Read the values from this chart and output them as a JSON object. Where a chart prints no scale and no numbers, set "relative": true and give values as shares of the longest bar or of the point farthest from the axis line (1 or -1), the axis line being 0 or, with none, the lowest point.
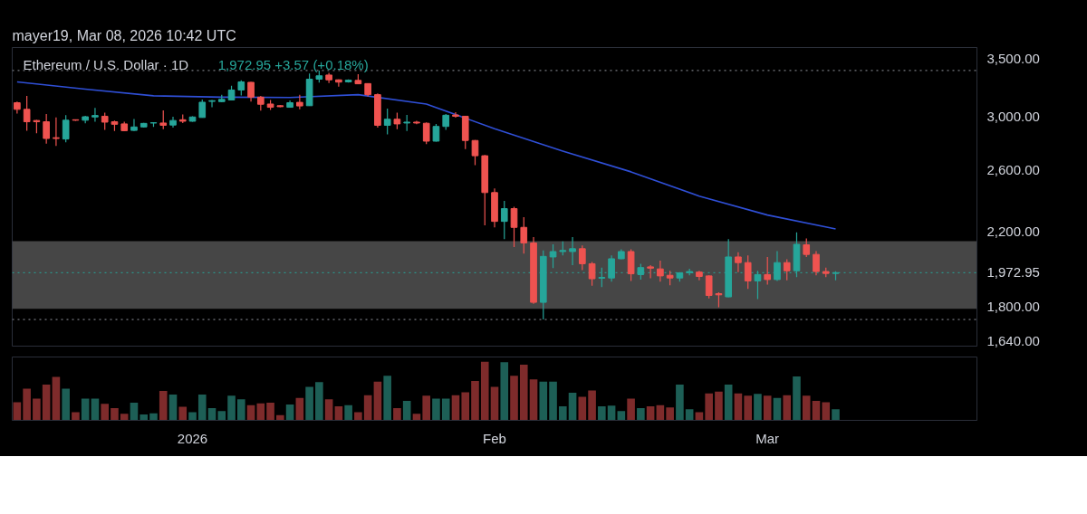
{
  "chart_data": [
    {
      "type": "candlestick",
      "title": "Ethereum / U.S. Dollar · 1D",
      "annotations": [
        "mayer19, Mar 08, 2026 10:42 UTC",
        "1,972.95  +3.57 (+0.18%)"
      ],
      "log": true,
      "tick_labels": "y",
      "xlim": [
        "2025-12-13T12:00",
        "2026-03-22T12:00"
      ],
      "ylim": [
        1620,
        3610
      ],
      "yticks": [
        {
          "value": 1640,
          "label": "1,640.00"
        },
        {
          "value": 1800,
          "label": "1,800.00"
        },
        {
          "value": 2200,
          "label": "2,200.00"
        },
        {
          "value": 2600,
          "label": "2,600.00"
        },
        {
          "value": 3000,
          "label": "3,000.00"
        },
        {
          "value": 3500,
          "label": "3,500.00"
        }
      ],
      "x": [
        "2025-12-14",
        "2025-12-15",
        "2025-12-16",
        "2025-12-17",
        "2025-12-18",
        "2025-12-19",
        "2025-12-20",
        "2025-12-21",
        "2025-12-22",
        "2025-12-23",
        "2025-12-24",
        "2025-12-25",
        "2025-12-26",
        "2025-12-27",
        "2025-12-28",
        "2025-12-29",
        "2025-12-30",
        "2025-12-31",
        "2026-01-01",
        "2026-01-02",
        "2026-01-03",
        "2026-01-04",
        "2026-01-05",
        "2026-01-06",
        "2026-01-07",
        "2026-01-08",
        "2026-01-09",
        "2026-01-10",
        "2026-01-11",
        "2026-01-12",
        "2026-01-13",
        "2026-01-14",
        "2026-01-15",
        "2026-01-16",
        "2026-01-17",
        "2026-01-18",
        "2026-01-19",
        "2026-01-20",
        "2026-01-21",
        "2026-01-22",
        "2026-01-23",
        "2026-01-24",
        "2026-01-25",
        "2026-01-26",
        "2026-01-27",
        "2026-01-28",
        "2026-01-29",
        "2026-01-30",
        "2026-01-31",
        "2026-02-01",
        "2026-02-02",
        "2026-02-03",
        "2026-02-04",
        "2026-02-05",
        "2026-02-06",
        "2026-02-07",
        "2026-02-08",
        "2026-02-09",
        "2026-02-10",
        "2026-02-11",
        "2026-02-12",
        "2026-02-13",
        "2026-02-14",
        "2026-02-15",
        "2026-02-16",
        "2026-02-17",
        "2026-02-18",
        "2026-02-19",
        "2026-02-20",
        "2026-02-21",
        "2026-02-22",
        "2026-02-23",
        "2026-02-24",
        "2026-02-25",
        "2026-02-26",
        "2026-02-27",
        "2026-02-28",
        "2026-03-01",
        "2026-03-02",
        "2026-03-03",
        "2026-03-04",
        "2026-03-05",
        "2026-03-06",
        "2026-03-07",
        "2026-03-08"
      ],
      "ohlc": [
        [
          3113,
          3122,
          3023,
          3058
        ],
        [
          3058,
          3170,
          2888,
          2958
        ],
        [
          2968,
          2972,
          2868,
          2958
        ],
        [
          2958,
          3020,
          2789,
          2828
        ],
        [
          2834,
          2992,
          2772,
          2828
        ],
        [
          2824,
          3010,
          2800,
          2970
        ],
        [
          2974,
          2977,
          2966,
          2970
        ],
        [
          2970,
          3006,
          2946,
          2998
        ],
        [
          2996,
          3070,
          2958,
          3008
        ],
        [
          3002,
          3031,
          2894,
          2955
        ],
        [
          2958,
          2968,
          2886,
          2938
        ],
        [
          2941,
          2958,
          2884,
          2888
        ],
        [
          2890,
          2980,
          2886,
          2917
        ],
        [
          2917,
          2950,
          2912,
          2945
        ],
        [
          2948,
          2954,
          2917,
          2950
        ],
        [
          2948,
          3049,
          2900,
          2930
        ],
        [
          2932,
          2998,
          2912,
          2968
        ],
        [
          2974,
          3016,
          2948,
          2962
        ],
        [
          2962,
          3002,
          2958,
          2996
        ],
        [
          2992,
          3139,
          2990,
          3117
        ],
        [
          3124,
          3136,
          3075,
          3130
        ],
        [
          3122,
          3180,
          3116,
          3141
        ],
        [
          3136,
          3258,
          3132,
          3221
        ],
        [
          3221,
          3306,
          3175,
          3292
        ],
        [
          3288,
          3292,
          3122,
          3160
        ],
        [
          3160,
          3170,
          3047,
          3100
        ],
        [
          3102,
          3136,
          3054,
          3075
        ],
        [
          3088,
          3092,
          3075,
          3080
        ],
        [
          3075,
          3132,
          3071,
          3113
        ],
        [
          3116,
          3180,
          3058,
          3086
        ],
        [
          3088,
          3367,
          3086,
          3316
        ],
        [
          3316,
          3394,
          3286,
          3346
        ],
        [
          3353,
          3372,
          3282,
          3310
        ],
        [
          3310,
          3313,
          3251,
          3290
        ],
        [
          3292,
          3313,
          3286,
          3307
        ],
        [
          3305,
          3360,
          3273,
          3275
        ],
        [
          3277,
          3277,
          3166,
          3181
        ],
        [
          3181,
          3192,
          2912,
          2930
        ],
        [
          2930,
          3064,
          2859,
          2978
        ],
        [
          2978,
          3031,
          2900,
          2941
        ],
        [
          2948,
          3012,
          2886,
          2955
        ],
        [
          2955,
          2966,
          2938,
          2948
        ],
        [
          2946,
          2952,
          2786,
          2808
        ],
        [
          2808,
          2941,
          2805,
          2921
        ],
        [
          2921,
          3020,
          2894,
          3010
        ],
        [
          3012,
          3034,
          2990,
          3002
        ],
        [
          3002,
          3005,
          2748,
          2813
        ],
        [
          2813,
          2817,
          2633,
          2700
        ],
        [
          2700,
          2705,
          2240,
          2446
        ],
        [
          2446,
          2473,
          2228,
          2264
        ],
        [
          2264,
          2392,
          2159,
          2343
        ],
        [
          2343,
          2354,
          2114,
          2228
        ],
        [
          2228,
          2290,
          2076,
          2137
        ],
        [
          2137,
          2170,
          1815,
          1822
        ],
        [
          1822,
          2094,
          1740,
          2061
        ],
        [
          2058,
          2129,
          1997,
          2088
        ],
        [
          2088,
          2146,
          2066,
          2094
        ],
        [
          2088,
          2170,
          2013,
          2104
        ],
        [
          2104,
          2122,
          1987,
          2021
        ],
        [
          2021,
          2031,
          1905,
          1941
        ],
        [
          1944,
          2000,
          1898,
          1948
        ],
        [
          1945,
          2067,
          1926,
          2048
        ],
        [
          2048,
          2101,
          2045,
          2088
        ],
        [
          2088,
          2101,
          1930,
          1967
        ],
        [
          1963,
          2021,
          1937,
          2000
        ],
        [
          2004,
          2013,
          1944,
          1997
        ],
        [
          1993,
          2038,
          1926,
          1956
        ],
        [
          1959,
          1983,
          1907,
          1945
        ],
        [
          1945,
          1976,
          1926,
          1972
        ],
        [
          1973,
          1994,
          1959,
          1979
        ],
        [
          1976,
          1983,
          1933,
          1953
        ],
        [
          1956,
          1959,
          1841,
          1856
        ],
        [
          1865,
          1872,
          1798,
          1859
        ],
        [
          1849,
          2159,
          1847,
          2058
        ],
        [
          2058,
          2084,
          1976,
          2027
        ],
        [
          2027,
          2067,
          1889,
          1930
        ],
        [
          1930,
          1983,
          1838,
          1963
        ],
        [
          1963,
          2058,
          1911,
          1937
        ],
        [
          1937,
          2091,
          1930,
          2027
        ],
        [
          2027,
          2045,
          1933,
          1983
        ],
        [
          1983,
          2198,
          1950,
          2129
        ],
        [
          2126,
          2163,
          2058,
          2072
        ],
        [
          2072,
          2091,
          1959,
          1979
        ],
        [
          1979,
          2000,
          1950,
          1969
        ],
        [
          1969,
          1980,
          1933,
          1972.95
        ]
      ],
      "colors": [
        "#ef5350",
        "#ef5350",
        "#ef5350",
        "#ef5350",
        "#ef5350",
        "#26a69a",
        "#ef5350",
        "#26a69a",
        "#26a69a",
        "#ef5350",
        "#ef5350",
        "#ef5350",
        "#26a69a",
        "#26a69a",
        "#26a69a",
        "#ef5350",
        "#26a69a",
        "#ef5350",
        "#26a69a",
        "#26a69a",
        "#26a69a",
        "#26a69a",
        "#26a69a",
        "#26a69a",
        "#ef5350",
        "#ef5350",
        "#ef5350",
        "#ef5350",
        "#26a69a",
        "#ef5350",
        "#26a69a",
        "#26a69a",
        "#ef5350",
        "#ef5350",
        "#26a69a",
        "#ef5350",
        "#ef5350",
        "#ef5350",
        "#26a69a",
        "#ef5350",
        "#26a69a",
        "#ef5350",
        "#ef5350",
        "#26a69a",
        "#26a69a",
        "#ef5350",
        "#ef5350",
        "#ef5350",
        "#ef5350",
        "#ef5350",
        "#26a69a",
        "#ef5350",
        "#ef5350",
        "#ef5350",
        "#26a69a",
        "#26a69a",
        "#26a69a",
        "#26a69a",
        "#ef5350",
        "#ef5350",
        "#26a69a",
        "#26a69a",
        "#26a69a",
        "#ef5350",
        "#26a69a",
        "#ef5350",
        "#ef5350",
        "#ef5350",
        "#26a69a",
        "#26a69a",
        "#ef5350",
        "#ef5350",
        "#ef5350",
        "#26a69a",
        "#ef5350",
        "#ef5350",
        "#26a69a",
        "#ef5350",
        "#26a69a",
        "#ef5350",
        "#26a69a",
        "#ef5350",
        "#ef5350",
        "#ef5350",
        "#26a69a"
      ],
      "series": [
        {
          "type": "line",
          "color": "#2f4fd6",
          "x": [
            "2025-12-14",
            "2025-12-21",
            "2025-12-28",
            "2026-01-04",
            "2026-01-11",
            "2026-01-18",
            "2026-01-25",
            "2026-02-01",
            "2026-02-08",
            "2026-02-15",
            "2026-02-22",
            "2026-03-01",
            "2026-03-08"
          ],
          "values": [
            3292,
            3229,
            3171,
            3160,
            3157,
            3181,
            3102,
            2903,
            2734,
            2586,
            2423,
            2303,
            2219
          ]
        }
      ],
      "ref_lines": [
        {
          "axis": "y",
          "value": 3394,
          "color": "#9598a1",
          "line_style": "dotted"
        },
        {
          "axis": "y",
          "value": 1740,
          "color": "#9598a1",
          "line_style": "dotted"
        },
        {
          "axis": "y",
          "value": 1972.95,
          "label": "1,972.95",
          "color": "#26a69a",
          "line_style": "dotted"
        }
      ],
      "bands": [
        {
          "axis": "y",
          "from": 1791,
          "to": 2147,
          "color": "#808080"
        }
      ]
    },
    {
      "type": "bar",
      "relative": true,
      "tick_labels": "x",
      "xlim": [
        "2025-12-13T12:00",
        "2026-03-22T12:00"
      ],
      "xticks": [
        {
          "value": "2026-01-01",
          "label": "2026"
        },
        {
          "value": "2026-02-01",
          "label": "Feb"
        },
        {
          "value": "2026-03-01",
          "label": "Mar"
        }
      ],
      "x": [
        "2025-12-14",
        "2025-12-15",
        "2025-12-16",
        "2025-12-17",
        "2025-12-18",
        "2025-12-19",
        "2025-12-20",
        "2025-12-21",
        "2025-12-22",
        "2025-12-23",
        "2025-12-24",
        "2025-12-25",
        "2025-12-26",
        "2025-12-27",
        "2025-12-28",
        "2025-12-29",
        "2025-12-30",
        "2025-12-31",
        "2026-01-01",
        "2026-01-02",
        "2026-01-03",
        "2026-01-04",
        "2026-01-05",
        "2026-01-06",
        "2026-01-07",
        "2026-01-08",
        "2026-01-09",
        "2026-01-10",
        "2026-01-11",
        "2026-01-12",
        "2026-01-13",
        "2026-01-14",
        "2026-01-15",
        "2026-01-16",
        "2026-01-17",
        "2026-01-18",
        "2026-01-19",
        "2026-01-20",
        "2026-01-21",
        "2026-01-22",
        "2026-01-23",
        "2026-01-24",
        "2026-01-25",
        "2026-01-26",
        "2026-01-27",
        "2026-01-28",
        "2026-01-29",
        "2026-01-30",
        "2026-01-31",
        "2026-02-01",
        "2026-02-02",
        "2026-02-03",
        "2026-02-04",
        "2026-02-05",
        "2026-02-06",
        "2026-02-07",
        "2026-02-08",
        "2026-02-09",
        "2026-02-10",
        "2026-02-11",
        "2026-02-12",
        "2026-02-13",
        "2026-02-14",
        "2026-02-15",
        "2026-02-16",
        "2026-02-17",
        "2026-02-18",
        "2026-02-19",
        "2026-02-20",
        "2026-02-21",
        "2026-02-22",
        "2026-02-23",
        "2026-02-24",
        "2026-02-25",
        "2026-02-26",
        "2026-02-27",
        "2026-02-28",
        "2026-03-01",
        "2026-03-02",
        "2026-03-03",
        "2026-03-04",
        "2026-03-05",
        "2026-03-06",
        "2026-03-07",
        "2026-03-08"
      ],
      "values": [
        0.31,
        0.54,
        0.37,
        0.61,
        0.74,
        0.54,
        0.14,
        0.37,
        0.37,
        0.28,
        0.21,
        0.11,
        0.3,
        0.1,
        0.12,
        0.5,
        0.44,
        0.23,
        0.14,
        0.44,
        0.21,
        0.16,
        0.42,
        0.36,
        0.26,
        0.29,
        0.3,
        0.09,
        0.27,
        0.38,
        0.57,
        0.65,
        0.36,
        0.24,
        0.26,
        0.14,
        0.43,
        0.66,
        0.76,
        0.21,
        0.33,
        0.11,
        0.42,
        0.37,
        0.37,
        0.43,
        0.48,
        0.67,
        1.0,
        0.57,
        0.99,
        0.76,
        0.95,
        0.7,
        0.66,
        0.66,
        0.24,
        0.47,
        0.4,
        0.51,
        0.24,
        0.25,
        0.16,
        0.37,
        0.21,
        0.24,
        0.26,
        0.22,
        0.61,
        0.19,
        0.14,
        0.46,
        0.49,
        0.61,
        0.46,
        0.42,
        0.45,
        0.42,
        0.38,
        0.43,
        0.75,
        0.42,
        0.33,
        0.31,
        0.19
      ],
      "colors": [
        "#7e2b2b",
        "#7e2b2b",
        "#7e2b2b",
        "#7e2b2b",
        "#7e2b2b",
        "#1d5f56",
        "#7e2b2b",
        "#1d5f56",
        "#1d5f56",
        "#7e2b2b",
        "#7e2b2b",
        "#7e2b2b",
        "#1d5f56",
        "#1d5f56",
        "#1d5f56",
        "#7e2b2b",
        "#1d5f56",
        "#7e2b2b",
        "#1d5f56",
        "#1d5f56",
        "#1d5f56",
        "#1d5f56",
        "#1d5f56",
        "#1d5f56",
        "#7e2b2b",
        "#7e2b2b",
        "#7e2b2b",
        "#7e2b2b",
        "#1d5f56",
        "#7e2b2b",
        "#1d5f56",
        "#1d5f56",
        "#7e2b2b",
        "#7e2b2b",
        "#1d5f56",
        "#7e2b2b",
        "#7e2b2b",
        "#7e2b2b",
        "#1d5f56",
        "#7e2b2b",
        "#1d5f56",
        "#7e2b2b",
        "#7e2b2b",
        "#1d5f56",
        "#1d5f56",
        "#7e2b2b",
        "#7e2b2b",
        "#7e2b2b",
        "#7e2b2b",
        "#7e2b2b",
        "#1d5f56",
        "#7e2b2b",
        "#7e2b2b",
        "#7e2b2b",
        "#1d5f56",
        "#1d5f56",
        "#1d5f56",
        "#1d5f56",
        "#7e2b2b",
        "#7e2b2b",
        "#1d5f56",
        "#1d5f56",
        "#1d5f56",
        "#7e2b2b",
        "#1d5f56",
        "#7e2b2b",
        "#7e2b2b",
        "#7e2b2b",
        "#1d5f56",
        "#1d5f56",
        "#7e2b2b",
        "#7e2b2b",
        "#7e2b2b",
        "#1d5f56",
        "#7e2b2b",
        "#7e2b2b",
        "#1d5f56",
        "#7e2b2b",
        "#1d5f56",
        "#7e2b2b",
        "#1d5f56",
        "#7e2b2b",
        "#7e2b2b",
        "#7e2b2b",
        "#1d5f56"
      ]
    }
  ]
}
